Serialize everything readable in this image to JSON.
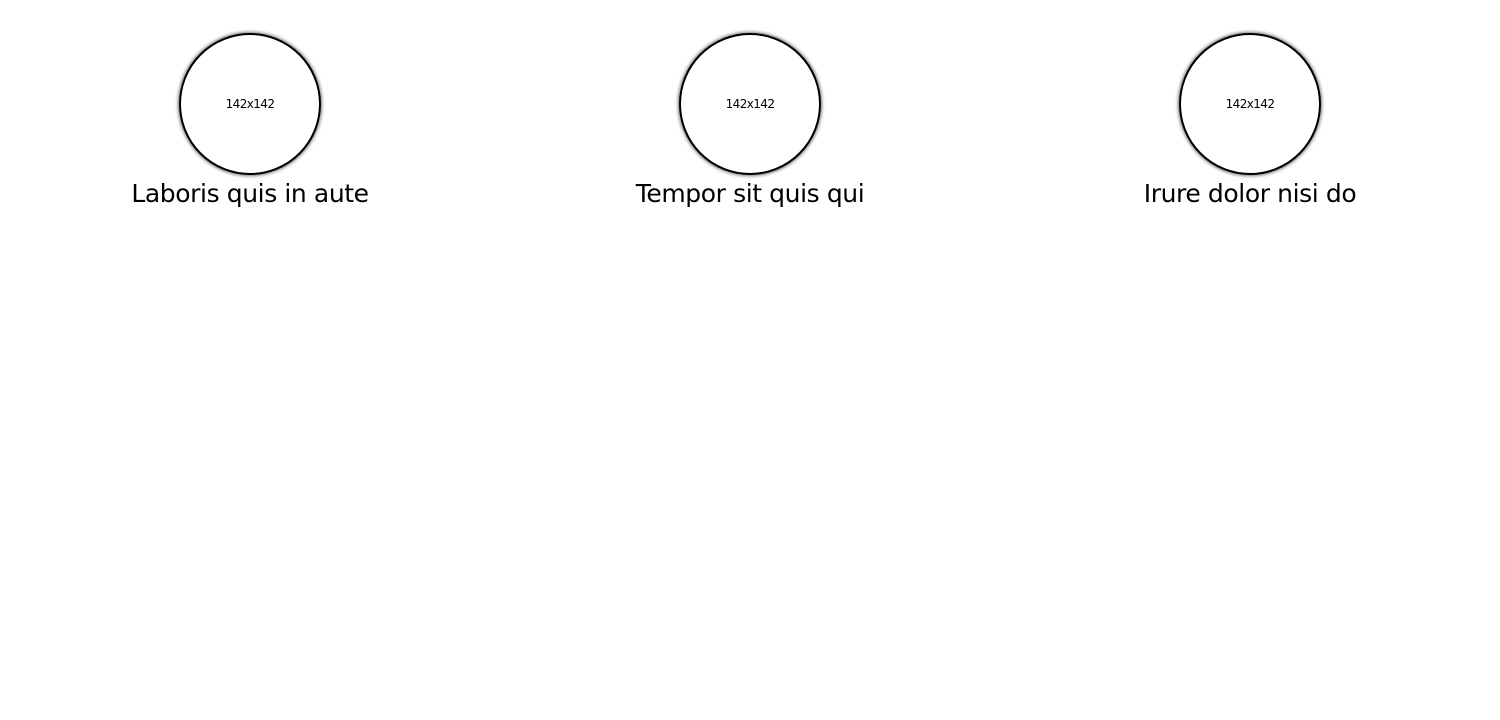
{
  "cards": [
    {
      "image_label": "142x142",
      "caption": "Laboris quis in aute"
    },
    {
      "image_label": "142x142",
      "caption": "Tempor sit quis qui"
    },
    {
      "image_label": "142x142",
      "caption": "Irure dolor nisi do"
    }
  ]
}
